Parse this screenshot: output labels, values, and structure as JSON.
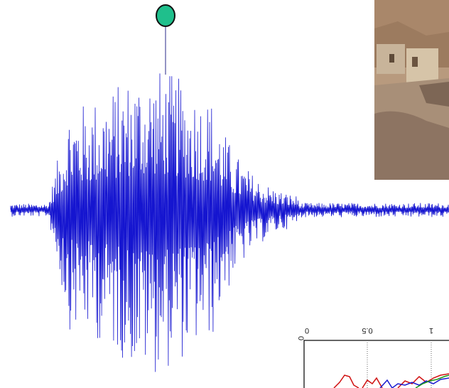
{
  "inset": {
    "top_labels": [
      "0",
      "0.5",
      "1"
    ],
    "left_label": "0"
  }
}
